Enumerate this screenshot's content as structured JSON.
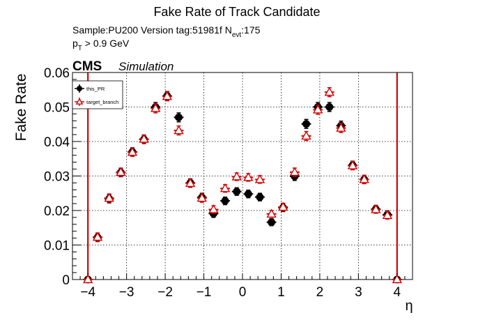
{
  "chart_data": {
    "type": "scatter",
    "title": "Fake Rate of Track Candidate",
    "info_line1": {
      "prefix": "Sample:PU200   Version tag:51981f  N",
      "subscript": "evt",
      "suffix": ":175"
    },
    "info_line2": {
      "prefix": "p",
      "subscript": "T",
      "suffix": " > 0.9 GeV"
    },
    "experiment": "CMS",
    "experiment_tag": "Simulation",
    "xlabel": "η",
    "ylabel": "Fake Rate",
    "xlim": [
      -4.4,
      4.4
    ],
    "ylim": [
      0,
      0.06
    ],
    "x_ticks": [
      -4,
      -3,
      -2,
      -1,
      0,
      1,
      2,
      3,
      4
    ],
    "x_tick_labels": [
      "−4",
      "−3",
      "−2",
      "−1",
      "0",
      "1",
      "2",
      "3",
      "4"
    ],
    "y_ticks": [
      0,
      0.01,
      0.02,
      0.03,
      0.04,
      0.05,
      0.06
    ],
    "y_tick_labels": [
      "0",
      "0.01",
      "0.02",
      "0.03",
      "0.04",
      "0.05",
      "0.06"
    ],
    "grid": true,
    "legend_placement": "top-left",
    "x_bin_half_width": 0.125,
    "series": [
      {
        "name": "this_PR",
        "color": "#000000",
        "marker": "filled-circle",
        "points": [
          {
            "x": -4.0,
            "y": 0.0,
            "err": 0.0
          },
          {
            "x": -3.75,
            "y": 0.0122,
            "err": 0.0012
          },
          {
            "x": -3.45,
            "y": 0.0234,
            "err": 0.0012
          },
          {
            "x": -3.15,
            "y": 0.031,
            "err": 0.0012
          },
          {
            "x": -2.85,
            "y": 0.037,
            "err": 0.0012
          },
          {
            "x": -2.55,
            "y": 0.0406,
            "err": 0.0012
          },
          {
            "x": -2.25,
            "y": 0.05,
            "err": 0.0013
          },
          {
            "x": -1.95,
            "y": 0.0532,
            "err": 0.0013
          },
          {
            "x": -1.65,
            "y": 0.047,
            "err": 0.0013
          },
          {
            "x": -1.35,
            "y": 0.028,
            "err": 0.0012
          },
          {
            "x": -1.05,
            "y": 0.0238,
            "err": 0.0012
          },
          {
            "x": -0.75,
            "y": 0.0191,
            "err": 0.0011
          },
          {
            "x": -0.45,
            "y": 0.0228,
            "err": 0.0011
          },
          {
            "x": -0.15,
            "y": 0.0255,
            "err": 0.0011
          },
          {
            "x": 0.15,
            "y": 0.0248,
            "err": 0.0011
          },
          {
            "x": 0.45,
            "y": 0.0239,
            "err": 0.0011
          },
          {
            "x": 0.75,
            "y": 0.0166,
            "err": 0.001
          },
          {
            "x": 1.05,
            "y": 0.0208,
            "err": 0.0011
          },
          {
            "x": 1.35,
            "y": 0.0299,
            "err": 0.0012
          },
          {
            "x": 1.65,
            "y": 0.0451,
            "err": 0.0013
          },
          {
            "x": 1.95,
            "y": 0.05,
            "err": 0.0013
          },
          {
            "x": 2.25,
            "y": 0.05,
            "err": 0.0013
          },
          {
            "x": 2.55,
            "y": 0.0446,
            "err": 0.0013
          },
          {
            "x": 2.85,
            "y": 0.0331,
            "err": 0.0012
          },
          {
            "x": 3.15,
            "y": 0.029,
            "err": 0.0012
          },
          {
            "x": 3.45,
            "y": 0.0204,
            "err": 0.0011
          },
          {
            "x": 3.75,
            "y": 0.0188,
            "err": 0.0011
          },
          {
            "x": 4.0,
            "y": 0.0,
            "err": 0.0
          }
        ]
      },
      {
        "name": "target_branch",
        "color": "#d40000",
        "marker": "open-triangle",
        "points": [
          {
            "x": -4.0,
            "y": 0.0,
            "err": 0.0
          },
          {
            "x": -3.75,
            "y": 0.0123,
            "err": 0.0012
          },
          {
            "x": -3.45,
            "y": 0.0236,
            "err": 0.0012
          },
          {
            "x": -3.15,
            "y": 0.0311,
            "err": 0.0012
          },
          {
            "x": -2.85,
            "y": 0.0369,
            "err": 0.0012
          },
          {
            "x": -2.55,
            "y": 0.0407,
            "err": 0.0012
          },
          {
            "x": -2.25,
            "y": 0.0496,
            "err": 0.0013
          },
          {
            "x": -1.95,
            "y": 0.0531,
            "err": 0.0013
          },
          {
            "x": -1.65,
            "y": 0.0432,
            "err": 0.0013
          },
          {
            "x": -1.35,
            "y": 0.0279,
            "err": 0.0012
          },
          {
            "x": -1.05,
            "y": 0.0236,
            "err": 0.0012
          },
          {
            "x": -0.75,
            "y": 0.0203,
            "err": 0.0011
          },
          {
            "x": -0.45,
            "y": 0.0264,
            "err": 0.0011
          },
          {
            "x": -0.15,
            "y": 0.0298,
            "err": 0.0011
          },
          {
            "x": 0.15,
            "y": 0.0296,
            "err": 0.0011
          },
          {
            "x": 0.45,
            "y": 0.029,
            "err": 0.0011
          },
          {
            "x": 0.75,
            "y": 0.019,
            "err": 0.001
          },
          {
            "x": 1.05,
            "y": 0.021,
            "err": 0.0011
          },
          {
            "x": 1.35,
            "y": 0.0311,
            "err": 0.0012
          },
          {
            "x": 1.65,
            "y": 0.0416,
            "err": 0.0013
          },
          {
            "x": 1.95,
            "y": 0.0492,
            "err": 0.0013
          },
          {
            "x": 2.25,
            "y": 0.0543,
            "err": 0.0013
          },
          {
            "x": 2.55,
            "y": 0.0439,
            "err": 0.0013
          },
          {
            "x": 2.85,
            "y": 0.033,
            "err": 0.0012
          },
          {
            "x": 3.15,
            "y": 0.029,
            "err": 0.0012
          },
          {
            "x": 3.45,
            "y": 0.0203,
            "err": 0.0011
          },
          {
            "x": 3.75,
            "y": 0.0186,
            "err": 0.0011
          },
          {
            "x": 4.0,
            "y": 0.0,
            "err": 0.0
          }
        ]
      }
    ],
    "vertical_lines": [
      {
        "x": -4.0,
        "color": "#d40000"
      },
      {
        "x": 4.0,
        "color": "#d40000"
      }
    ]
  }
}
